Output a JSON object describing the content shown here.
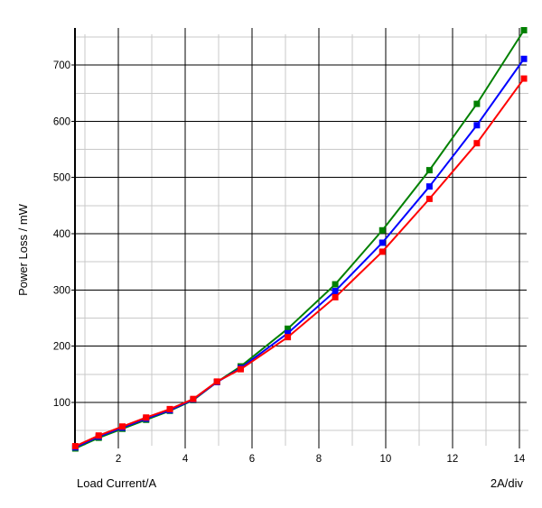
{
  "chart_data": {
    "type": "line",
    "title": "",
    "xlabel": "Load Current/A",
    "ylabel": "Power Loss / mW",
    "x_div_label": "2A/div",
    "xlim": [
      0.7,
      14.22
    ],
    "ylim": [
      18,
      766
    ],
    "x_ticks_major": [
      2,
      4,
      6,
      8,
      10,
      12,
      14
    ],
    "x_ticks_minor": [
      1,
      3,
      5,
      7,
      9,
      11,
      13
    ],
    "y_ticks_major": [
      100,
      200,
      300,
      400,
      500,
      600,
      700
    ],
    "y_ticks_minor": [
      50,
      150,
      250,
      350,
      450,
      550,
      650,
      750
    ],
    "grid": {
      "major_color": "#000000",
      "minor_color": "#c9c9c9",
      "axis_color": "#000000"
    },
    "background": "#ffffff",
    "marker": "square",
    "legend_position": "none",
    "x": [
      0.71,
      1.41,
      2.12,
      2.83,
      3.54,
      4.24,
      4.95,
      5.66,
      7.07,
      8.49,
      9.9,
      11.31,
      12.73,
      14.14
    ],
    "series": [
      {
        "name": "green",
        "color": "#008000",
        "values": [
          18,
          37,
          53,
          69,
          85,
          104,
          136,
          164,
          231,
          310,
          406,
          513,
          631,
          762
        ]
      },
      {
        "name": "blue",
        "color": "#0000ff",
        "values": [
          20,
          39,
          55,
          71,
          86,
          105,
          136,
          161,
          223,
          298,
          384,
          484,
          593,
          711
        ]
      },
      {
        "name": "red",
        "color": "#ff0000",
        "values": [
          22,
          41,
          57,
          73,
          88,
          106,
          137,
          159,
          216,
          287,
          368,
          462,
          561,
          676
        ]
      }
    ]
  }
}
